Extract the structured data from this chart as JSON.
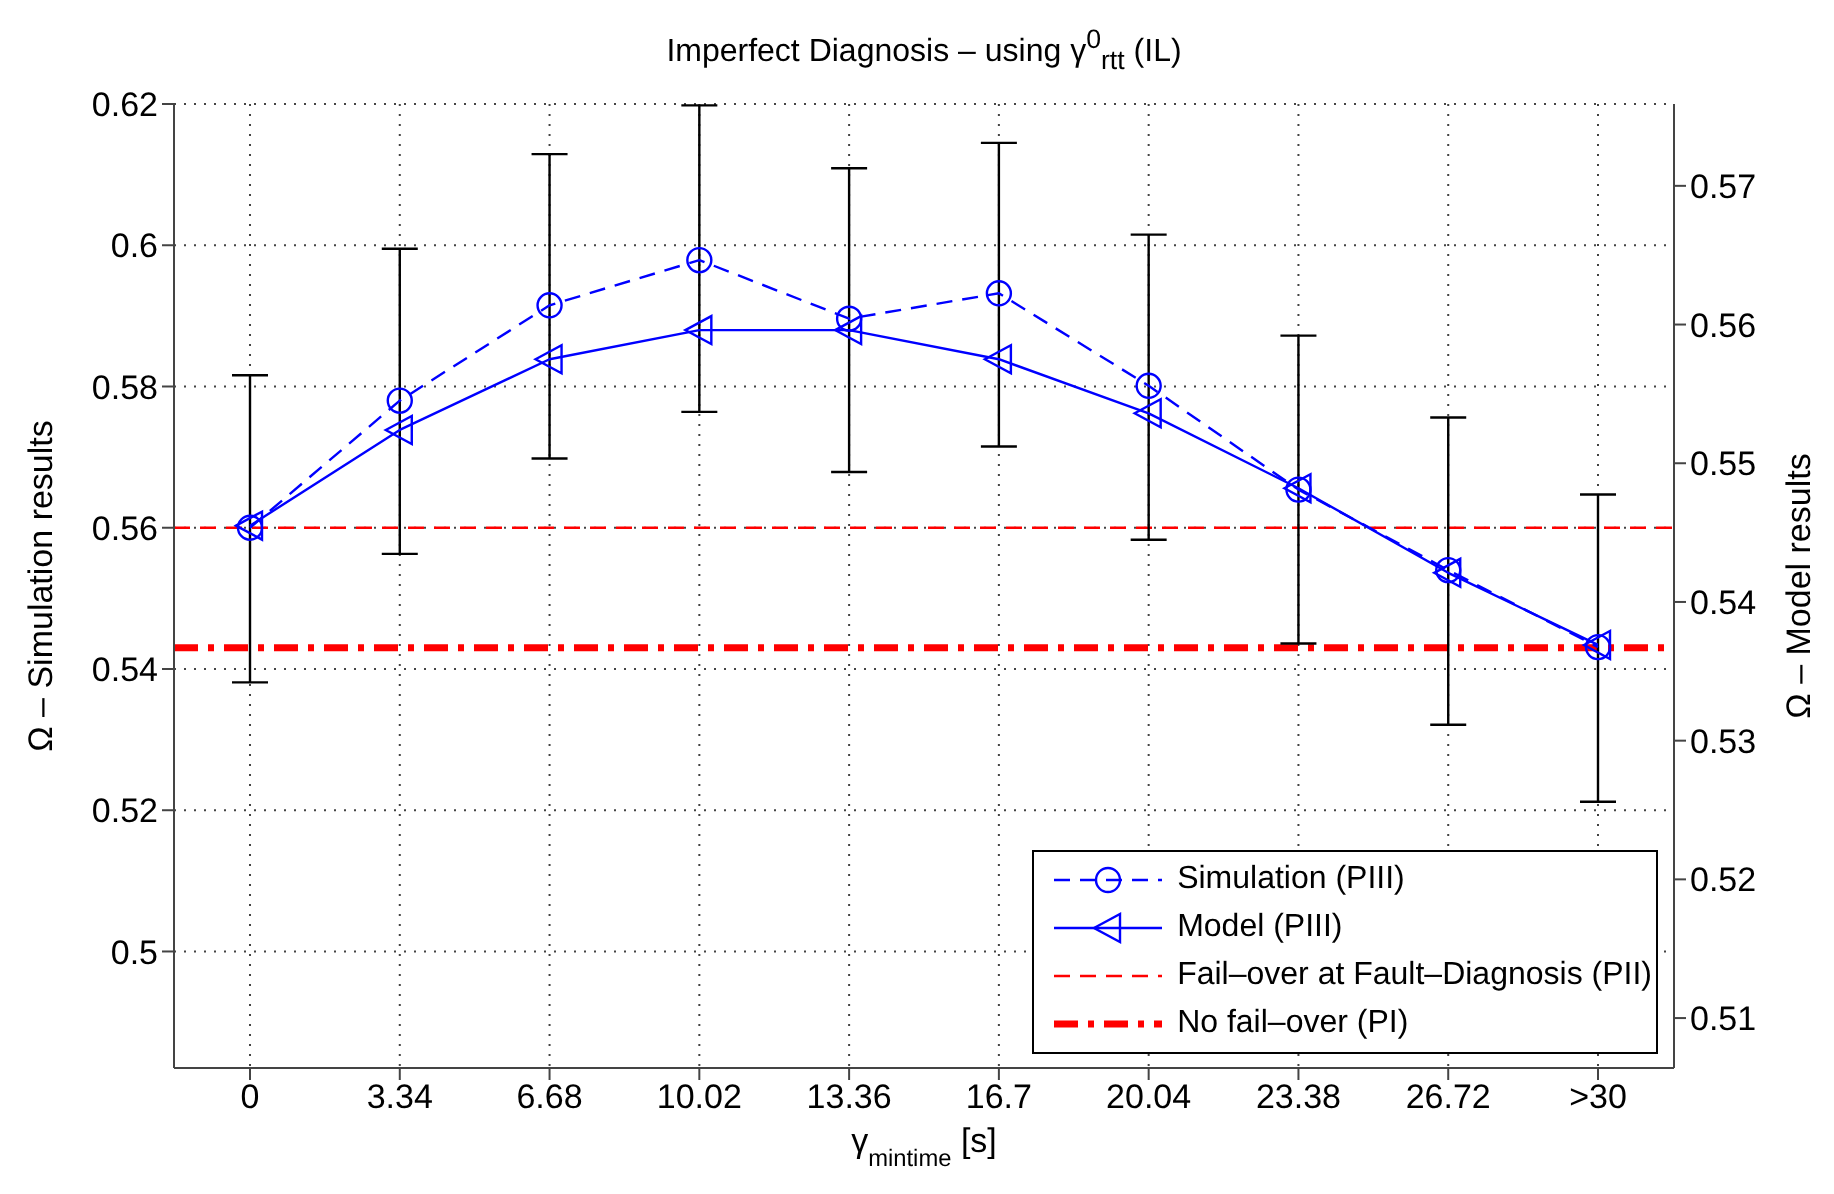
{
  "chart_data": {
    "type": "line",
    "title": "Imperfect Diagnosis – using γ$^{0}$$_{rtt}$ (IL)",
    "xlabel": "γ$_{mintime}$ [s]",
    "ylabel": "Ω – Simulation results",
    "y2label": "Ω – Model results",
    "categories": [
      "0",
      "3.34",
      "6.68",
      "10.02",
      "13.36",
      "16.7",
      "20.04",
      "23.38",
      "26.72",
      ">30"
    ],
    "series": [
      {
        "name": "Simulation (PIII)",
        "color": "#0000ff",
        "marker": "circle",
        "line_style": "dashed",
        "values": [
          0.56,
          0.578,
          0.5915,
          0.5979,
          0.5896,
          0.5932,
          0.5801,
          0.5654,
          0.554,
          0.5431
        ],
        "errors": [
          [
            0.5381,
            0.5816
          ],
          [
            0.5563,
            0.5995
          ],
          [
            0.5698,
            0.6129
          ],
          [
            0.5764,
            0.6198
          ],
          [
            0.5679,
            0.6109
          ],
          [
            0.5715,
            0.6145
          ],
          [
            0.5583,
            0.6015
          ],
          [
            0.5436,
            0.5872
          ],
          [
            0.5321,
            0.5756
          ],
          [
            0.5212,
            0.5647
          ]
        ]
      },
      {
        "name": "Model (PIII)",
        "color": "#0000ff",
        "marker": "triangle",
        "line_style": "solid",
        "axis": "y2",
        "values": [
          0.5455,
          0.5524,
          0.5575,
          0.5596,
          0.5596,
          0.5575,
          0.5536,
          0.5482,
          0.5421,
          0.5369
        ]
      }
    ],
    "ref_lines": [
      {
        "axis": "y",
        "value": 0.56,
        "label": "Fail–over at Fault–Diagnosis (PII)",
        "color": "#ff0000",
        "line_style": "dashed"
      },
      {
        "axis": "y",
        "value": 0.543,
        "label": "No fail–over (PI)",
        "color": "#ff0000",
        "line_style": "dashdot"
      }
    ],
    "ylim": [
      0.4835,
      0.62
    ],
    "yticks": [
      0.5,
      0.52,
      0.54,
      0.56,
      0.58,
      0.6,
      0.62
    ],
    "y2lim": [
      0.5064,
      0.5759
    ],
    "y2ticks": [
      0.51,
      0.52,
      0.53,
      0.54,
      0.55,
      0.56,
      0.57
    ],
    "grid": true,
    "legend": "bottom right"
  }
}
